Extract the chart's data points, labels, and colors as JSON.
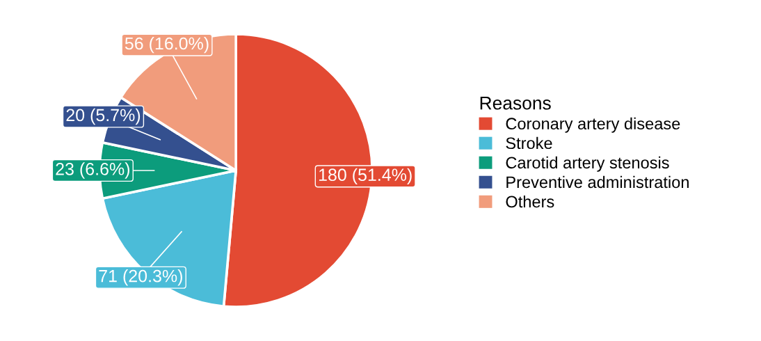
{
  "chart_data": {
    "type": "pie",
    "legend_title": "Reasons",
    "legend": "right",
    "categories": [
      "Coronary artery disease",
      "Stroke",
      "Carotid artery stenosis",
      "Preventive administration",
      "Others"
    ],
    "values": [
      180,
      71,
      23,
      20,
      56
    ],
    "value_labels": [
      "180 (51.4%)",
      "71 (20.3%)",
      "23 (6.6%)",
      "20 (5.7%)",
      "56 (16.0%)"
    ],
    "colors": [
      "#e34a33",
      "#4bbcd8",
      "#0c9c7c",
      "#34508f",
      "#f19c7c"
    ]
  }
}
